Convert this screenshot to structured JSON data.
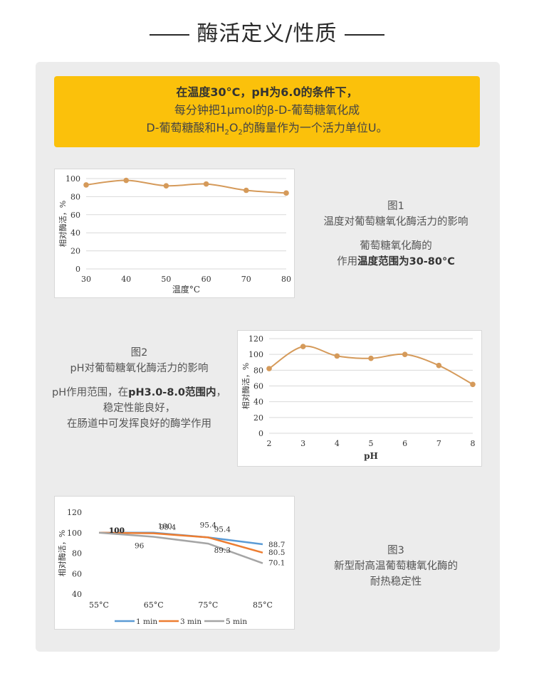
{
  "header": {
    "title": "酶活定义/性质"
  },
  "notice": {
    "line1": "在温度30°C，pH为6.0的条件下，",
    "line2": "每分钟把1μmol的β-D-葡萄糖氧化成",
    "line3_pre": "D-葡萄糖酸和H",
    "line3_sub1": "2",
    "line3_mid": "O",
    "line3_sub2": "2",
    "line3_post": "的酶量作为一个活力单位U。"
  },
  "fig1": {
    "caption_title": "图1",
    "caption_subtitle": "温度对葡萄糖氧化酶活力的影响",
    "desc_line1": "葡萄糖氧化酶的",
    "desc_line2_pre": "作用",
    "desc_line2_bold": "温度范围为30-80°C"
  },
  "fig2": {
    "caption_title": "图2",
    "caption_subtitle": "pH对葡萄糖氧化酶活力的影响",
    "desc_line1_pre": "pH作用范围，在",
    "desc_line1_bold": "pH3.0-8.0范围内",
    "desc_line1_post": "，",
    "desc_line2": "稳定性能良好，",
    "desc_line3": "在肠道中可发挥良好的酶学作用"
  },
  "fig3": {
    "caption_title": "图3",
    "caption_line2": "新型耐高温葡萄糖氧化酶的",
    "caption_line3": "耐热稳定性"
  },
  "chart_data": [
    {
      "type": "line",
      "title": "",
      "xlabel": "温度°C",
      "ylabel": "相对酶活，%",
      "x": [
        30,
        40,
        50,
        60,
        70,
        80
      ],
      "y": [
        93,
        98,
        92,
        94,
        87,
        84
      ],
      "xlim": [
        30,
        80
      ],
      "ylim": [
        0,
        100
      ],
      "yticks": [
        0,
        20,
        40,
        60,
        80,
        100
      ],
      "grid": true,
      "color": "#d59a5a"
    },
    {
      "type": "line",
      "title": "",
      "xlabel": "pH",
      "ylabel": "相对酶活，%",
      "x": [
        2,
        3,
        4,
        5,
        6,
        7,
        8
      ],
      "y": [
        82,
        110,
        98,
        95,
        100,
        86,
        62
      ],
      "xlim": [
        2,
        8
      ],
      "ylim": [
        0,
        120
      ],
      "yticks": [
        0,
        20,
        40,
        60,
        80,
        100,
        120
      ],
      "grid": true,
      "color": "#d59a5a"
    },
    {
      "type": "line",
      "title": "",
      "xlabel": "",
      "ylabel": "相对酶活，%",
      "categories": [
        "55°C",
        "65°C",
        "75°C",
        "85°C"
      ],
      "ylim": [
        40,
        120
      ],
      "yticks": [
        40,
        60,
        80,
        100,
        120
      ],
      "grid": true,
      "legend": "bottom",
      "series": [
        {
          "name": "1 min",
          "values": [
            100,
            100,
            95.4,
            88.7
          ],
          "color": "#5b9bd5",
          "labels": [
            "100",
            "",
            "95.4",
            "88.7"
          ]
        },
        {
          "name": "3 min",
          "values": [
            100,
            99.4,
            95.4,
            80.5
          ],
          "color": "#ed7d31",
          "labels": [
            "100",
            "99.4",
            "95.4",
            "80.5"
          ]
        },
        {
          "name": "5 min",
          "values": [
            100,
            96,
            89.3,
            70.1
          ],
          "color": "#a5a5a5",
          "labels": [
            "100",
            "96",
            "89.3",
            "70.1"
          ]
        }
      ],
      "extra_label": "100"
    }
  ]
}
